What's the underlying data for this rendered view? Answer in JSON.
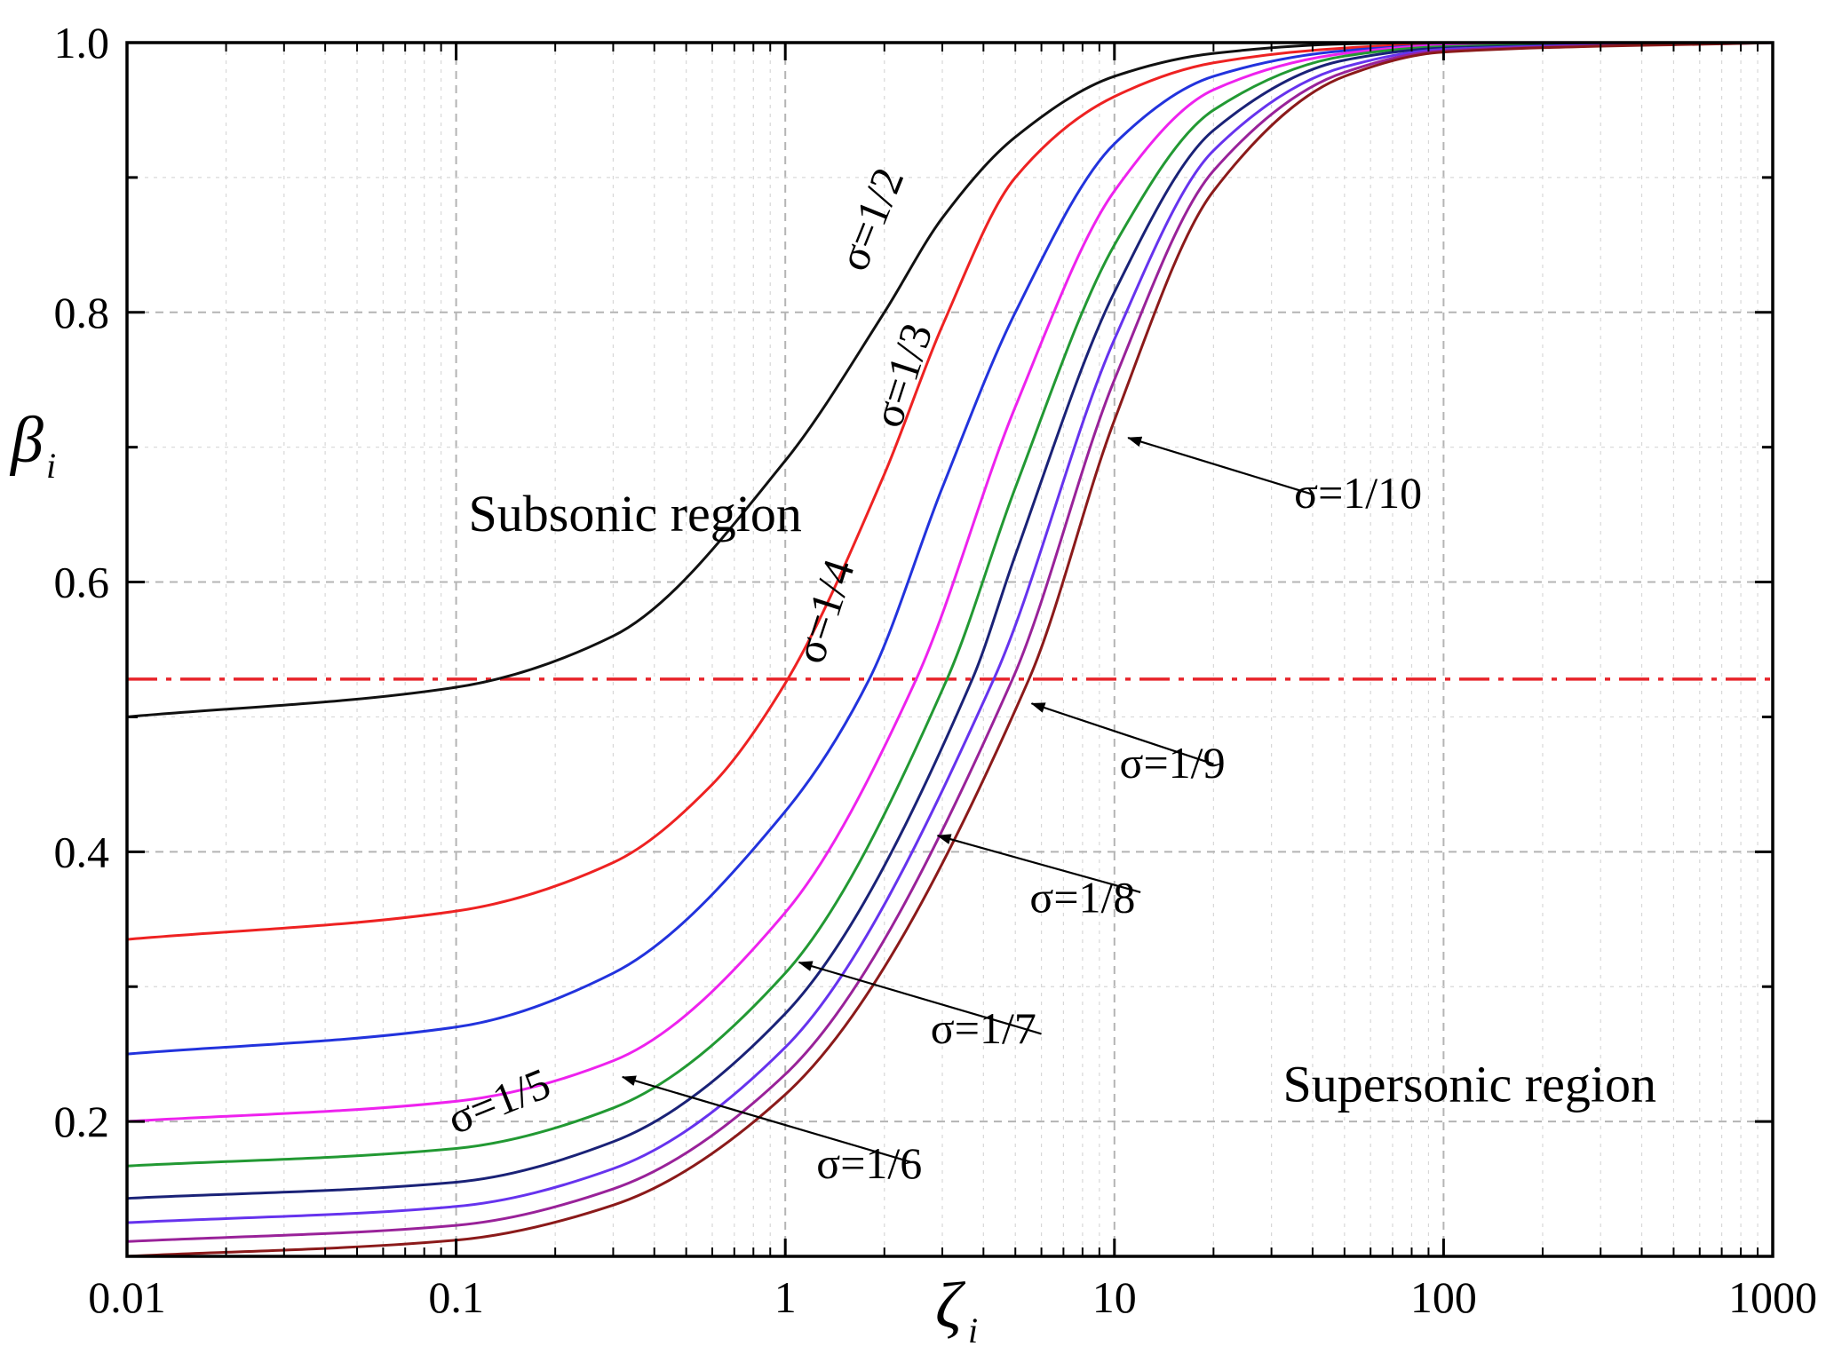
{
  "chart_data": {
    "type": "line",
    "xscale": "log",
    "xlim": [
      0.01,
      1000
    ],
    "ylim": [
      0.1,
      1.0
    ],
    "xlabel": {
      "symbol": "ζ",
      "subscript": "i"
    },
    "ylabel": {
      "symbol": "β",
      "subscript": "i"
    },
    "x_ticks": [
      {
        "value": 0.01,
        "label": "0.01"
      },
      {
        "value": 0.1,
        "label": "0.1"
      },
      {
        "value": 1,
        "label": "1"
      },
      {
        "value": 10,
        "label": "10"
      },
      {
        "value": 100,
        "label": "100"
      },
      {
        "value": 1000,
        "label": "1000"
      }
    ],
    "y_ticks": [
      {
        "value": 0.2,
        "label": "0.2"
      },
      {
        "value": 0.4,
        "label": "0.4"
      },
      {
        "value": 0.6,
        "label": "0.6"
      },
      {
        "value": 0.8,
        "label": "0.8"
      },
      {
        "value": 1.0,
        "label": "1.0"
      }
    ],
    "grid": true,
    "reference_line": {
      "y": 0.528,
      "color": "#e8242a",
      "style": "dash-dot"
    },
    "regions": [
      {
        "name": "subsonic",
        "label": "Subsonic region",
        "x": 0.35,
        "y": 0.638
      },
      {
        "name": "supersonic",
        "label": "Supersonic region",
        "x": 120,
        "y": 0.215
      }
    ],
    "series": [
      {
        "name": "σ=1/2",
        "color": "#111111",
        "x": [
          0.01,
          0.1,
          0.3,
          1,
          2,
          3,
          5,
          10,
          20,
          50,
          100,
          1000
        ],
        "y": [
          0.5,
          0.522,
          0.56,
          0.69,
          0.8,
          0.87,
          0.93,
          0.975,
          0.992,
          0.999,
          1.0,
          1.0
        ]
      },
      {
        "name": "σ=1/3",
        "color": "#ee2222",
        "x": [
          0.01,
          0.1,
          0.3,
          0.6,
          1,
          2,
          3,
          5,
          10,
          20,
          50,
          100,
          1000
        ],
        "y": [
          0.335,
          0.356,
          0.392,
          0.45,
          0.525,
          0.68,
          0.79,
          0.9,
          0.96,
          0.985,
          0.996,
          0.999,
          1.0
        ]
      },
      {
        "name": "σ=1/4",
        "color": "#2233dd",
        "x": [
          0.01,
          0.1,
          0.3,
          1,
          1.8,
          3,
          5,
          10,
          20,
          50,
          100,
          1000
        ],
        "y": [
          0.25,
          0.27,
          0.31,
          0.43,
          0.528,
          0.67,
          0.8,
          0.925,
          0.975,
          0.994,
          0.998,
          1.0
        ]
      },
      {
        "name": "σ=1/5",
        "color": "#ee22ee",
        "x": [
          0.01,
          0.1,
          0.3,
          1,
          2.5,
          5,
          10,
          20,
          50,
          100,
          1000
        ],
        "y": [
          0.2,
          0.215,
          0.245,
          0.355,
          0.528,
          0.73,
          0.89,
          0.965,
          0.992,
          0.998,
          1.0
        ]
      },
      {
        "name": "σ=1/6",
        "color": "#229933",
        "x": [
          0.01,
          0.1,
          0.3,
          1,
          3.1,
          5,
          10,
          20,
          50,
          100,
          1000
        ],
        "y": [
          0.167,
          0.18,
          0.21,
          0.31,
          0.528,
          0.67,
          0.85,
          0.95,
          0.99,
          0.997,
          1.0
        ]
      },
      {
        "name": "σ=1/7",
        "color": "#1a2277",
        "x": [
          0.01,
          0.1,
          0.3,
          1,
          3.7,
          5,
          10,
          20,
          50,
          100,
          1000
        ],
        "y": [
          0.143,
          0.155,
          0.185,
          0.28,
          0.528,
          0.62,
          0.815,
          0.935,
          0.987,
          0.996,
          1.0
        ]
      },
      {
        "name": "σ=1/8",
        "color": "#6633ee",
        "x": [
          0.01,
          0.1,
          0.3,
          1,
          4.3,
          10,
          20,
          50,
          100,
          1000
        ],
        "y": [
          0.125,
          0.137,
          0.165,
          0.255,
          0.528,
          0.78,
          0.92,
          0.982,
          0.995,
          1.0
        ]
      },
      {
        "name": "σ=1/9",
        "color": "#992299",
        "x": [
          0.01,
          0.1,
          0.3,
          1,
          4.9,
          10,
          20,
          50,
          100,
          1000
        ],
        "y": [
          0.111,
          0.123,
          0.15,
          0.235,
          0.528,
          0.75,
          0.905,
          0.978,
          0.994,
          1.0
        ]
      },
      {
        "name": "σ=1/10",
        "color": "#8b1a1a",
        "x": [
          0.01,
          0.1,
          0.3,
          1,
          5.5,
          10,
          20,
          50,
          100,
          1000
        ],
        "y": [
          0.1,
          0.112,
          0.138,
          0.22,
          0.528,
          0.72,
          0.89,
          0.975,
          0.993,
          1.0
        ]
      }
    ],
    "curve_labels": [
      {
        "text": "σ=1/2",
        "x": 2.0,
        "y": 0.865,
        "angle": -68
      },
      {
        "text": "σ=1/3",
        "x": 2.5,
        "y": 0.75,
        "angle": -72
      },
      {
        "text": "σ=1/4",
        "x": 1.45,
        "y": 0.575,
        "angle": -72
      },
      {
        "text": "σ=1/5",
        "x": 0.14,
        "y": 0.205,
        "angle": -22
      }
    ],
    "annotations": [
      {
        "text": "σ=1/10",
        "text_x": 55,
        "text_y": 0.655,
        "arrow_from_x": 40,
        "arrow_from_y": 0.665,
        "arrow_to_x": 11,
        "arrow_to_y": 0.707
      },
      {
        "text": "σ=1/9",
        "text_x": 15,
        "text_y": 0.455,
        "arrow_from_x": 20,
        "arrow_from_y": 0.465,
        "arrow_to_x": 5.6,
        "arrow_to_y": 0.51
      },
      {
        "text": "σ=1/8",
        "text_x": 8,
        "text_y": 0.355,
        "arrow_from_x": 12,
        "arrow_from_y": 0.37,
        "arrow_to_x": 2.9,
        "arrow_to_y": 0.412
      },
      {
        "text": "σ=1/7",
        "text_x": 4,
        "text_y": 0.258,
        "arrow_from_x": 6,
        "arrow_from_y": 0.265,
        "arrow_to_x": 1.1,
        "arrow_to_y": 0.318
      },
      {
        "text": "σ=1/6",
        "text_x": 1.8,
        "text_y": 0.158,
        "arrow_from_x": 2.4,
        "arrow_from_y": 0.17,
        "arrow_to_x": 0.32,
        "arrow_to_y": 0.233
      }
    ]
  }
}
